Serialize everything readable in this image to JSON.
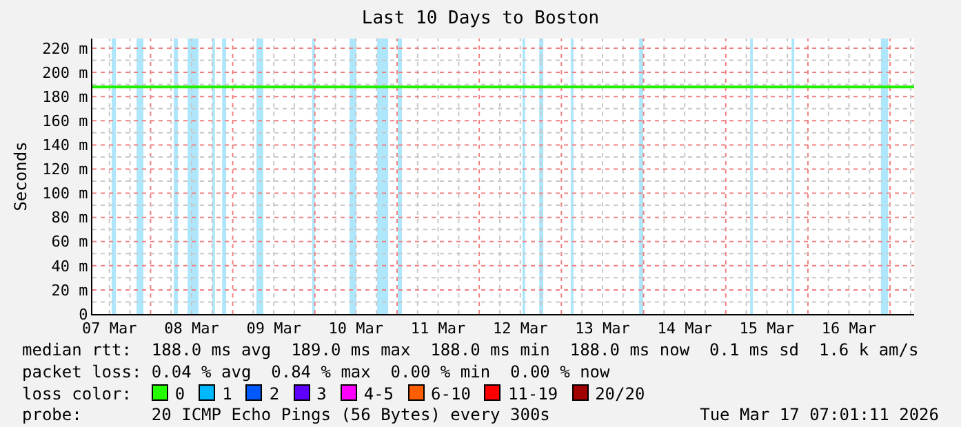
{
  "chart_data": {
    "type": "line",
    "title": "Last 10 Days to Boston",
    "ylabel": "Seconds",
    "x": [
      "2026-03-07T07:01",
      "2026-03-17T07:01"
    ],
    "series": [
      {
        "color": "#22ee00",
        "values": [
          188,
          188
        ]
      }
    ],
    "xlim": [
      "2026-03-07T07:01",
      "2026-03-17T07:01"
    ],
    "xticks": [
      {
        "value": "2026-03-07T12:00",
        "label": "07 Mar"
      },
      {
        "value": "2026-03-07T18:00",
        "label": null
      },
      {
        "value": "2026-03-08T00:00",
        "label": null
      },
      {
        "value": "2026-03-08T06:00",
        "label": null
      },
      {
        "value": "2026-03-08T12:00",
        "label": "08 Mar"
      },
      {
        "value": "2026-03-08T18:00",
        "label": null
      },
      {
        "value": "2026-03-09T00:00",
        "label": null
      },
      {
        "value": "2026-03-09T06:00",
        "label": null
      },
      {
        "value": "2026-03-09T12:00",
        "label": "09 Mar"
      },
      {
        "value": "2026-03-09T18:00",
        "label": null
      },
      {
        "value": "2026-03-10T00:00",
        "label": null
      },
      {
        "value": "2026-03-10T06:00",
        "label": null
      },
      {
        "value": "2026-03-10T12:00",
        "label": "10 Mar"
      },
      {
        "value": "2026-03-10T18:00",
        "label": null
      },
      {
        "value": "2026-03-11T00:00",
        "label": null
      },
      {
        "value": "2026-03-11T06:00",
        "label": null
      },
      {
        "value": "2026-03-11T12:00",
        "label": "11 Mar"
      },
      {
        "value": "2026-03-11T18:00",
        "label": null
      },
      {
        "value": "2026-03-12T00:00",
        "label": null
      },
      {
        "value": "2026-03-12T06:00",
        "label": null
      },
      {
        "value": "2026-03-12T12:00",
        "label": "12 Mar"
      },
      {
        "value": "2026-03-12T18:00",
        "label": null
      },
      {
        "value": "2026-03-13T00:00",
        "label": null
      },
      {
        "value": "2026-03-13T06:00",
        "label": null
      },
      {
        "value": "2026-03-13T12:00",
        "label": "13 Mar"
      },
      {
        "value": "2026-03-13T18:00",
        "label": null
      },
      {
        "value": "2026-03-14T00:00",
        "label": null
      },
      {
        "value": "2026-03-14T06:00",
        "label": null
      },
      {
        "value": "2026-03-14T12:00",
        "label": "14 Mar"
      },
      {
        "value": "2026-03-14T18:00",
        "label": null
      },
      {
        "value": "2026-03-15T00:00",
        "label": null
      },
      {
        "value": "2026-03-15T06:00",
        "label": null
      },
      {
        "value": "2026-03-15T12:00",
        "label": "15 Mar"
      },
      {
        "value": "2026-03-15T18:00",
        "label": null
      },
      {
        "value": "2026-03-16T00:00",
        "label": null
      },
      {
        "value": "2026-03-16T06:00",
        "label": null
      },
      {
        "value": "2026-03-16T12:00",
        "label": "16 Mar"
      },
      {
        "value": "2026-03-16T18:00",
        "label": null
      },
      {
        "value": "2026-03-17T00:00",
        "label": null
      },
      {
        "value": "2026-03-17T06:00",
        "label": null
      }
    ],
    "ylim": [
      0,
      228
    ],
    "yticks": [
      {
        "value": 0,
        "label": "0"
      },
      {
        "value": 10,
        "label": null
      },
      {
        "value": 20,
        "label": "20 m"
      },
      {
        "value": 30,
        "label": null
      },
      {
        "value": 40,
        "label": "40 m"
      },
      {
        "value": 50,
        "label": null
      },
      {
        "value": 60,
        "label": "60 m"
      },
      {
        "value": 70,
        "label": null
      },
      {
        "value": 80,
        "label": "80 m"
      },
      {
        "value": 90,
        "label": null
      },
      {
        "value": 100,
        "label": "100 m"
      },
      {
        "value": 110,
        "label": null
      },
      {
        "value": 120,
        "label": "120 m"
      },
      {
        "value": 130,
        "label": null
      },
      {
        "value": 140,
        "label": "140 m"
      },
      {
        "value": 150,
        "label": null
      },
      {
        "value": 160,
        "label": "160 m"
      },
      {
        "value": 170,
        "label": null
      },
      {
        "value": 180,
        "label": "180 m"
      },
      {
        "value": 190,
        "label": null
      },
      {
        "value": 200,
        "label": "200 m"
      },
      {
        "value": 210,
        "label": null
      },
      {
        "value": 220,
        "label": "220 m"
      }
    ],
    "grid": true,
    "marker": "none",
    "line_style": "solid",
    "bands": [
      {
        "axis": "x",
        "from": "2026-03-07T12:39",
        "to": "2026-03-07T13:52",
        "color": "#aee6fb"
      },
      {
        "axis": "x",
        "from": "2026-03-07T19:55",
        "to": "2026-03-07T21:55",
        "color": "#aee6fb"
      },
      {
        "axis": "x",
        "from": "2026-03-08T06:47",
        "to": "2026-03-08T08:00",
        "color": "#aee6fb"
      },
      {
        "axis": "x",
        "from": "2026-03-08T10:49",
        "to": "2026-03-08T14:01",
        "color": "#aee6fb"
      },
      {
        "axis": "x",
        "from": "2026-03-08T18:02",
        "to": "2026-03-08T18:50",
        "color": "#aee6fb"
      },
      {
        "axis": "x",
        "from": "2026-03-08T20:55",
        "to": "2026-03-08T22:06",
        "color": "#aee6fb"
      },
      {
        "axis": "x",
        "from": "2026-03-09T06:55",
        "to": "2026-03-09T08:56",
        "color": "#aee6fb"
      },
      {
        "axis": "x",
        "from": "2026-03-09T23:13",
        "to": "2026-03-10T00:01",
        "color": "#aee6fb"
      },
      {
        "axis": "x",
        "from": "2026-03-10T10:07",
        "to": "2026-03-10T12:07",
        "color": "#aee6fb"
      },
      {
        "axis": "x",
        "from": "2026-03-10T18:10",
        "to": "2026-03-10T21:25",
        "color": "#aee6fb"
      },
      {
        "axis": "x",
        "from": "2026-03-11T00:13",
        "to": "2026-03-11T01:25",
        "color": "#aee6fb"
      },
      {
        "axis": "x",
        "from": "2026-03-12T12:37",
        "to": "2026-03-12T13:25",
        "color": "#aee6fb"
      },
      {
        "axis": "x",
        "from": "2026-03-12T17:31",
        "to": "2026-03-12T18:43",
        "color": "#aee6fb"
      },
      {
        "axis": "x",
        "from": "2026-03-13T02:44",
        "to": "2026-03-13T03:32",
        "color": "#aee6fb"
      },
      {
        "axis": "x",
        "from": "2026-03-13T22:42",
        "to": "2026-03-13T23:54",
        "color": "#aee6fb"
      },
      {
        "axis": "x",
        "from": "2026-03-15T07:07",
        "to": "2026-03-15T07:55",
        "color": "#aee6fb"
      },
      {
        "axis": "x",
        "from": "2026-03-15T19:13",
        "to": "2026-03-15T20:01",
        "color": "#aee6fb"
      },
      {
        "axis": "x",
        "from": "2026-03-16T21:19",
        "to": "2026-03-16T23:25",
        "color": "#aee6fb"
      }
    ],
    "annotations": [
      "median rtt:  188.0 ms avg  189.0 ms max  188.0 ms min  188.0 ms now  0.1 ms sd  1.6 k am/s",
      "packet loss: 0.04 % avg  0.84 % max  0.00 % min  0.00 % now",
      "loss color:",
      "0",
      "1",
      "2",
      "3",
      "4-5",
      "6-10",
      "11-19",
      "20/20",
      "probe:       20 ICMP Echo Pings (56 Bytes) every 300s",
      "Tue Mar 17 07:01:11 2026"
    ]
  }
}
